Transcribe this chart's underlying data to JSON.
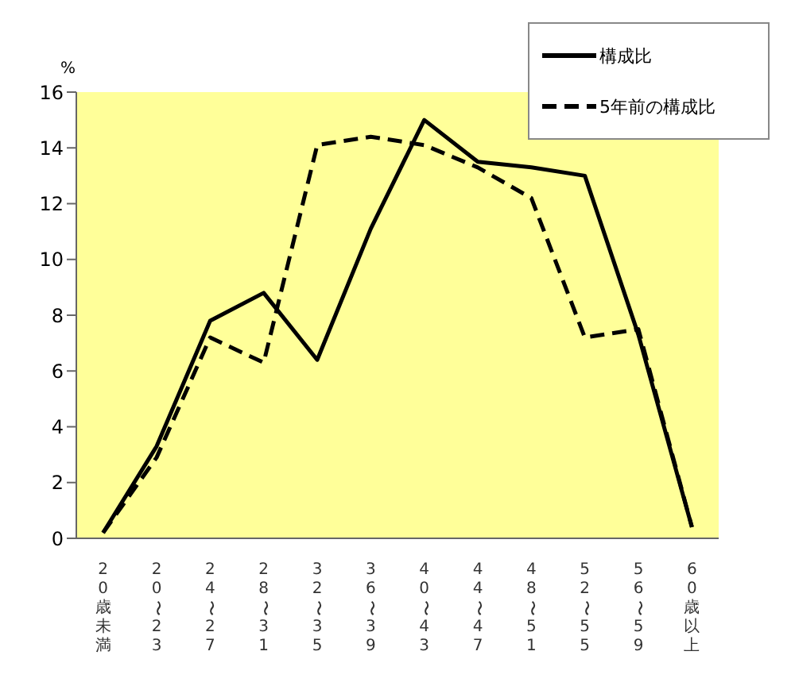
{
  "chart_data": {
    "type": "line",
    "ylabel": "%",
    "categories": [
      "20歳未満",
      "20〜23",
      "24〜27",
      "28〜31",
      "32〜35",
      "36〜39",
      "40〜43",
      "44〜47",
      "48〜51",
      "52〜55",
      "56〜59",
      "60歳以上"
    ],
    "series": [
      {
        "name": "構成比",
        "color": "#000000",
        "line_style": "solid",
        "values": [
          0.2,
          3.3,
          7.8,
          8.8,
          6.4,
          11.1,
          15.0,
          13.5,
          13.3,
          13.0,
          7.3,
          0.4
        ]
      },
      {
        "name": "5年前の構成比",
        "color": "#000000",
        "line_style": "dashed",
        "values": [
          0.2,
          2.9,
          7.2,
          6.3,
          14.1,
          14.4,
          14.1,
          13.3,
          12.2,
          7.2,
          7.5,
          0.4
        ]
      }
    ],
    "ylim": [
      0,
      16
    ],
    "yticks": [
      0,
      2,
      4,
      6,
      8,
      10,
      12,
      14,
      16
    ],
    "grid": false,
    "legend": "top right",
    "marker": "none"
  }
}
